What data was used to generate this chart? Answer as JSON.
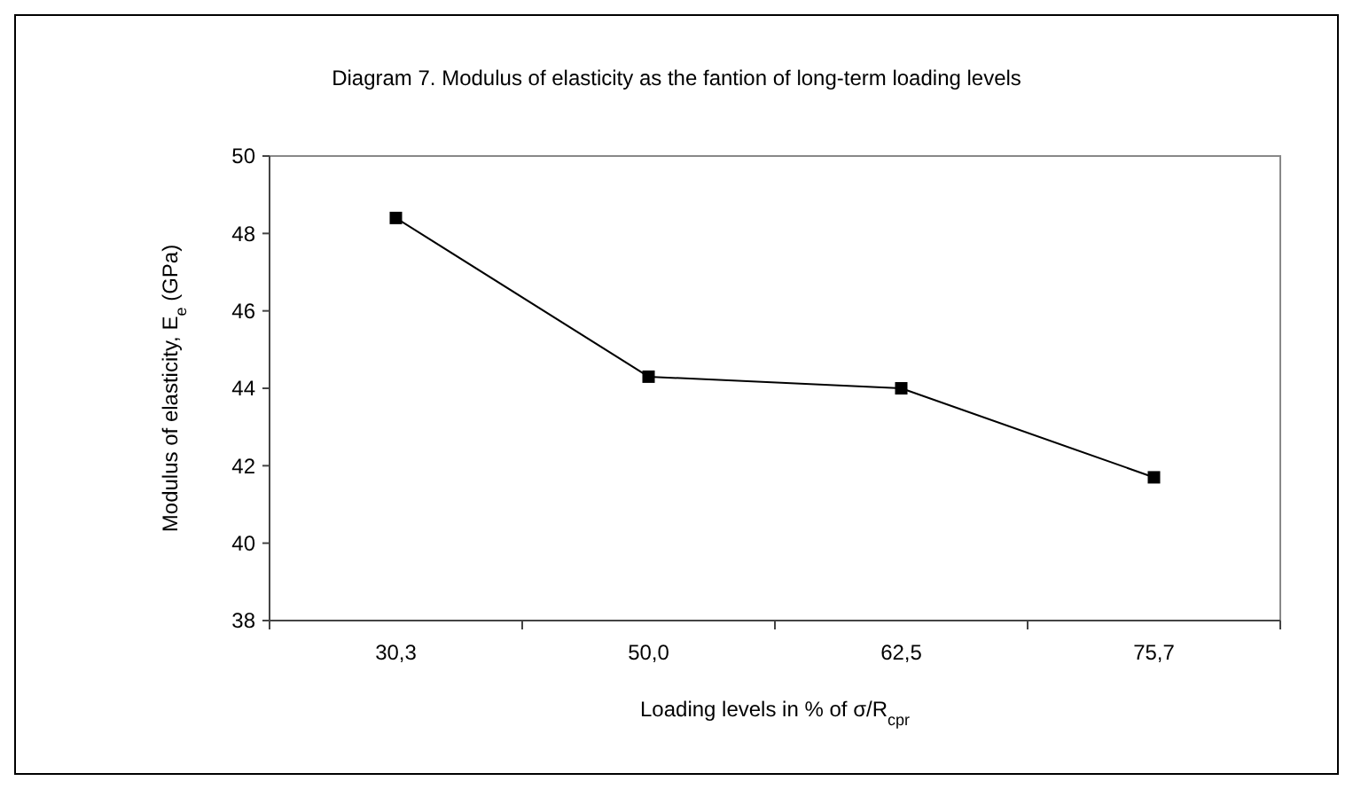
{
  "chart_data": {
    "type": "line",
    "title": "Diagram 7. Modulus of elasticity as the fantion of long-term loading levels",
    "xlabel": "Loading levels in % of σ/R$_{cpr}$",
    "ylabel": "Modulus of elasticity, E$_{e}$ (GPa)",
    "categories": [
      "30,3",
      "50,0",
      "62,5",
      "75,7"
    ],
    "series": [
      {
        "color": "#000000",
        "values": [
          48.4,
          44.3,
          44.0,
          41.7
        ]
      }
    ],
    "ylim": [
      38,
      50
    ],
    "yticks": [
      38,
      40,
      42,
      44,
      46,
      48,
      50
    ],
    "marker": "square",
    "line_style": "solid"
  }
}
